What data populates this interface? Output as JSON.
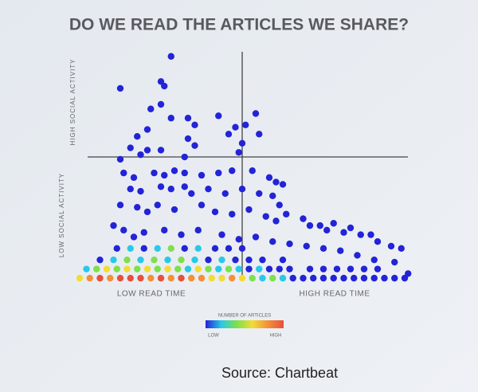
{
  "chart_data": {
    "type": "scatter",
    "title": "DO WE READ THE ARTICLES WE SHARE?",
    "x_label_low": "LOW READ TIME",
    "x_label_high": "HIGH READ TIME",
    "y_label_low": "LOW SOCIAL ACTIVITY",
    "y_label_high": "HIGH SOCIAL ACTIVITY",
    "xlim": [
      0,
      100
    ],
    "ylim": [
      0,
      100
    ],
    "divider_x": 48,
    "divider_y": 54,
    "x": [
      27,
      24,
      25,
      12,
      21,
      24,
      32,
      27,
      34,
      41,
      46,
      49,
      52,
      53,
      20,
      17,
      15,
      20,
      24,
      32,
      34,
      44,
      48,
      47,
      12,
      18,
      31,
      13,
      16,
      22,
      25,
      28,
      31,
      36,
      41,
      45,
      51,
      56,
      58,
      60,
      15,
      18,
      24,
      27,
      31,
      33,
      38,
      43,
      48,
      53,
      57,
      59,
      12,
      17,
      20,
      23,
      28,
      36,
      40,
      45,
      50,
      55,
      58,
      61,
      66,
      68,
      71,
      73,
      75,
      78,
      80,
      83,
      86,
      88,
      92,
      95,
      10,
      13,
      16,
      19,
      25,
      30,
      35,
      42,
      47,
      52,
      57,
      62,
      67,
      72,
      77,
      82,
      87,
      93,
      97,
      0,
      3,
      6,
      9,
      12,
      15,
      18,
      21,
      24,
      27,
      30,
      33,
      36,
      39,
      42,
      45,
      48,
      51,
      54,
      57,
      60,
      63,
      66,
      69,
      72,
      75,
      78,
      81,
      84,
      87,
      90,
      93,
      96,
      2,
      5,
      8,
      11,
      14,
      17,
      20,
      23,
      26,
      29,
      32,
      35,
      38,
      41,
      44,
      47,
      50,
      53,
      56,
      59,
      62,
      68,
      72,
      76,
      80,
      84,
      88,
      6,
      10,
      14,
      18,
      22,
      26,
      30,
      34,
      38,
      42,
      46,
      50,
      54,
      60,
      11,
      15,
      19,
      23,
      27,
      31,
      35,
      40,
      44,
      48
    ],
    "y": [
      98,
      87,
      85,
      84,
      75,
      77,
      71,
      71,
      68,
      72,
      67,
      68,
      73,
      64,
      66,
      63,
      58,
      57,
      57,
      62,
      59,
      64,
      60,
      56,
      53,
      55,
      54,
      47,
      45,
      47,
      46,
      48,
      47,
      46,
      47,
      48,
      48,
      45,
      43,
      42,
      40,
      39,
      41,
      40,
      41,
      38,
      40,
      38,
      40,
      38,
      37,
      33,
      33,
      32,
      30,
      33,
      31,
      33,
      30,
      29,
      31,
      28,
      26,
      29,
      27,
      24,
      24,
      22,
      25,
      21,
      23,
      20,
      20,
      17,
      15,
      14,
      24,
      22,
      19,
      21,
      22,
      20,
      22,
      20,
      18,
      19,
      17,
      16,
      15,
      14,
      13,
      11,
      9,
      8,
      3,
      1,
      1,
      1,
      1,
      1,
      1,
      1,
      1,
      1,
      1,
      1,
      1,
      1,
      1,
      1,
      1,
      1,
      1,
      1,
      1,
      1,
      1,
      1,
      1,
      1,
      1,
      1,
      1,
      1,
      1,
      1,
      1,
      1,
      5,
      5,
      5,
      5,
      5,
      5,
      5,
      5,
      5,
      5,
      5,
      5,
      5,
      5,
      5,
      5,
      5,
      5,
      5,
      5,
      5,
      5,
      5,
      5,
      5,
      5,
      5,
      9,
      9,
      9,
      9,
      9,
      9,
      9,
      9,
      9,
      9,
      9,
      9,
      9,
      9,
      14,
      14,
      14,
      14,
      14,
      14,
      14,
      14,
      14,
      14
    ],
    "colors": [
      "#2323d8",
      "#2323d8",
      "#2323d8",
      "#2323d8",
      "#2323d8",
      "#2323d8",
      "#2323d8",
      "#2323d8",
      "#2323d8",
      "#2323d8",
      "#2323d8",
      "#2323d8",
      "#2323d8",
      "#2323d8",
      "#2323d8",
      "#2323d8",
      "#2323d8",
      "#2323d8",
      "#2323d8",
      "#2323d8",
      "#2323d8",
      "#2323d8",
      "#2323d8",
      "#2323d8",
      "#2323d8",
      "#2323d8",
      "#2323d8",
      "#2323d8",
      "#2323d8",
      "#2323d8",
      "#2323d8",
      "#2323d8",
      "#2323d8",
      "#2323d8",
      "#2323d8",
      "#2323d8",
      "#2323d8",
      "#2323d8",
      "#2323d8",
      "#2323d8",
      "#2323d8",
      "#2323d8",
      "#2323d8",
      "#2323d8",
      "#2323d8",
      "#2323d8",
      "#2323d8",
      "#2323d8",
      "#2323d8",
      "#2323d8",
      "#2323d8",
      "#2323d8",
      "#2323d8",
      "#2323d8",
      "#2323d8",
      "#2323d8",
      "#2323d8",
      "#2323d8",
      "#2323d8",
      "#2323d8",
      "#2323d8",
      "#2323d8",
      "#2323d8",
      "#2323d8",
      "#2323d8",
      "#2323d8",
      "#2323d8",
      "#2323d8",
      "#2323d8",
      "#2323d8",
      "#2323d8",
      "#2323d8",
      "#2323d8",
      "#2323d8",
      "#2323d8",
      "#2323d8",
      "#2323d8",
      "#2323d8",
      "#2323d8",
      "#2323d8",
      "#2323d8",
      "#2323d8",
      "#2323d8",
      "#2323d8",
      "#2323d8",
      "#2323d8",
      "#2323d8",
      "#2323d8",
      "#2323d8",
      "#2323d8",
      "#2323d8",
      "#2323d8",
      "#2323d8",
      "#2323d8",
      "#2323d8",
      "#f2dc34",
      "#f39038",
      "#e6503c",
      "#f39038",
      "#e6503c",
      "#e6503c",
      "#e6503c",
      "#f39038",
      "#e6503c",
      "#f39038",
      "#e6503c",
      "#f39038",
      "#f39038",
      "#f2dc34",
      "#f2dc34",
      "#f39038",
      "#f2dc34",
      "#7ee04c",
      "#2ac8e8",
      "#7ee04c",
      "#2ac8e8",
      "#2323d8",
      "#2323d8",
      "#2323d8",
      "#2323d8",
      "#2323d8",
      "#2323d8",
      "#2323d8",
      "#2323d8",
      "#2323d8",
      "#2323d8",
      "#2323d8",
      "#2323d8",
      "#2ac8e8",
      "#7ee04c",
      "#f2dc34",
      "#7ee04c",
      "#f2dc34",
      "#7ee04c",
      "#f2dc34",
      "#7ee04c",
      "#f2dc34",
      "#7ee04c",
      "#2ac8e8",
      "#f2dc34",
      "#7ee04c",
      "#2ac8e8",
      "#7ee04c",
      "#2ac8e8",
      "#2323d8",
      "#2ac8e8",
      "#2323d8",
      "#2323d8",
      "#2323d8",
      "#2323d8",
      "#2323d8",
      "#2323d8",
      "#2323d8",
      "#2323d8",
      "#2323d8",
      "#2323d8",
      "#2ac8e8",
      "#7ee04c",
      "#2ac8e8",
      "#7ee04c",
      "#2ac8e8",
      "#7ee04c",
      "#2ac8e8",
      "#2323d8",
      "#2ac8e8",
      "#2323d8",
      "#2323d8",
      "#2323d8",
      "#2323d8",
      "#2323d8",
      "#2ac8e8",
      "#2323d8",
      "#2ac8e8",
      "#7ee04c",
      "#2323d8",
      "#2ac8e8",
      "#2323d8",
      "#2323d8",
      "#2323d8"
    ],
    "colorbar_title": "NUMBER OF ARTICLES",
    "colorbar_low": "LOW",
    "colorbar_high": "HIGH",
    "colorscale": [
      "#2323d8",
      "#2ac8e8",
      "#7ee04c",
      "#f2dc34",
      "#f39038",
      "#e6503c"
    ]
  },
  "source": "Source: Chartbeat"
}
